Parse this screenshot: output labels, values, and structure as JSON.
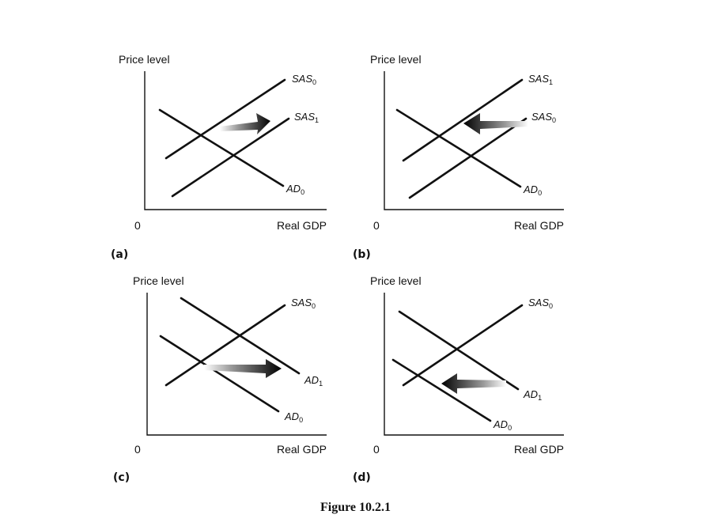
{
  "figure": {
    "caption": "Figure 10.2.1"
  },
  "panels": [
    {
      "id": "a",
      "tag": "(a)",
      "y_axis_label": "Price level",
      "x_axis_label": "Real GDP",
      "origin_label": "0",
      "curves": [
        {
          "type": "SAS",
          "label_main": "SAS",
          "label_sub": "0"
        },
        {
          "type": "SAS",
          "label_main": "SAS",
          "label_sub": "1"
        },
        {
          "type": "AD",
          "label_main": "AD",
          "label_sub": "0"
        }
      ],
      "arrow": {
        "direction": "right",
        "curve_shifted": "SAS"
      }
    },
    {
      "id": "b",
      "tag": "(b)",
      "y_axis_label": "Price level",
      "x_axis_label": "Real GDP",
      "origin_label": "0",
      "curves": [
        {
          "type": "SAS",
          "label_main": "SAS",
          "label_sub": "1"
        },
        {
          "type": "SAS",
          "label_main": "SAS",
          "label_sub": "0"
        },
        {
          "type": "AD",
          "label_main": "AD",
          "label_sub": "0"
        }
      ],
      "arrow": {
        "direction": "left",
        "curve_shifted": "SAS"
      }
    },
    {
      "id": "c",
      "tag": "(c)",
      "y_axis_label": "Price level",
      "x_axis_label": "Real GDP",
      "origin_label": "0",
      "curves": [
        {
          "type": "SAS",
          "label_main": "SAS",
          "label_sub": "0"
        },
        {
          "type": "AD",
          "label_main": "AD",
          "label_sub": "1"
        },
        {
          "type": "AD",
          "label_main": "AD",
          "label_sub": "0"
        }
      ],
      "arrow": {
        "direction": "right",
        "curve_shifted": "AD"
      }
    },
    {
      "id": "d",
      "tag": "(d)",
      "y_axis_label": "Price level",
      "x_axis_label": "Real GDP",
      "origin_label": "0",
      "curves": [
        {
          "type": "SAS",
          "label_main": "SAS",
          "label_sub": "0"
        },
        {
          "type": "AD",
          "label_main": "AD",
          "label_sub": "1"
        },
        {
          "type": "AD",
          "label_main": "AD",
          "label_sub": "0"
        }
      ],
      "arrow": {
        "direction": "left",
        "curve_shifted": "AD"
      }
    }
  ],
  "colors": {
    "ink": "#111111",
    "arrow_dark": "#000000",
    "arrow_light": "#ffffff"
  }
}
